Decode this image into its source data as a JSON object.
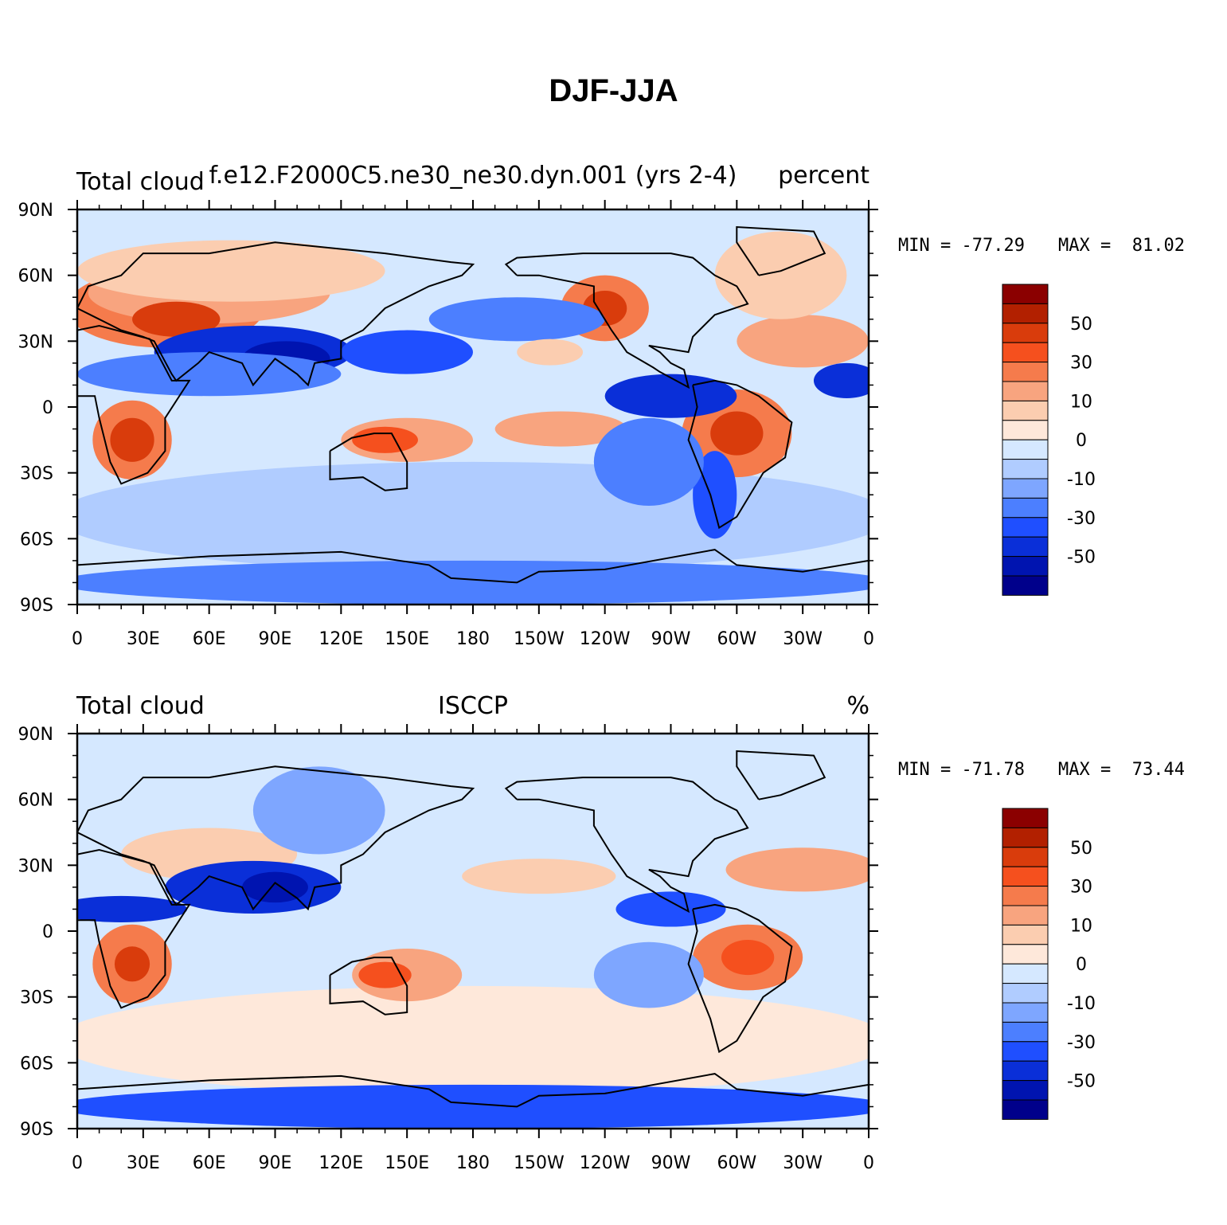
{
  "title": "DJF-JJA",
  "panels": [
    {
      "left_label": "Total cloud",
      "center_label": "f.e12.F2000C5.ne30_ne30.dyn.001 (yrs 2-4)",
      "right_label": "percent",
      "min_text": "MIN = -77.29",
      "max_text": "MAX =  81.02"
    },
    {
      "left_label": "Total cloud",
      "center_label": "ISCCP",
      "right_label": "%",
      "min_text": "MIN = -71.78",
      "max_text": "MAX =  73.44"
    }
  ],
  "axes": {
    "lat_labels": [
      "90N",
      "60N",
      "30N",
      "0",
      "30S",
      "60S",
      "90S"
    ],
    "lon_labels": [
      "0",
      "30E",
      "60E",
      "90E",
      "120E",
      "150E",
      "180",
      "150W",
      "120W",
      "90W",
      "60W",
      "30W",
      "0"
    ]
  },
  "colorbar": {
    "labels": [
      "50",
      "30",
      "10",
      "0",
      "-10",
      "-30",
      "-50"
    ],
    "colors": [
      "#8b0000",
      "#b22000",
      "#d93c0c",
      "#f5501e",
      "#f57b4c",
      "#f8a47f",
      "#fbcdb0",
      "#fee8da",
      "#d5e8ff",
      "#b0ccff",
      "#7ea6ff",
      "#4c7fff",
      "#1f4fff",
      "#0a2fd8",
      "#0014b0",
      "#00008b"
    ]
  },
  "chart_data": [
    {
      "type": "map",
      "title": "DJF-JJA",
      "left_label": "Total cloud",
      "center_label": "f.e12.F2000C5.ne30_ne30.dyn.001 (yrs 2-4)",
      "units": "percent",
      "min": -77.29,
      "max": 81.02,
      "lat_range": [
        -90,
        90
      ],
      "lon_range": [
        0,
        360
      ],
      "colorbar_levels": [
        50,
        30,
        10,
        0,
        -10,
        -30,
        -50
      ]
    },
    {
      "type": "map",
      "title": "DJF-JJA",
      "left_label": "Total cloud",
      "center_label": "ISCCP",
      "units": "%",
      "min": -71.78,
      "max": 73.44,
      "lat_range": [
        -90,
        90
      ],
      "lon_range": [
        0,
        360
      ],
      "colorbar_levels": [
        50,
        30,
        10,
        0,
        -10,
        -30,
        -50
      ]
    }
  ]
}
